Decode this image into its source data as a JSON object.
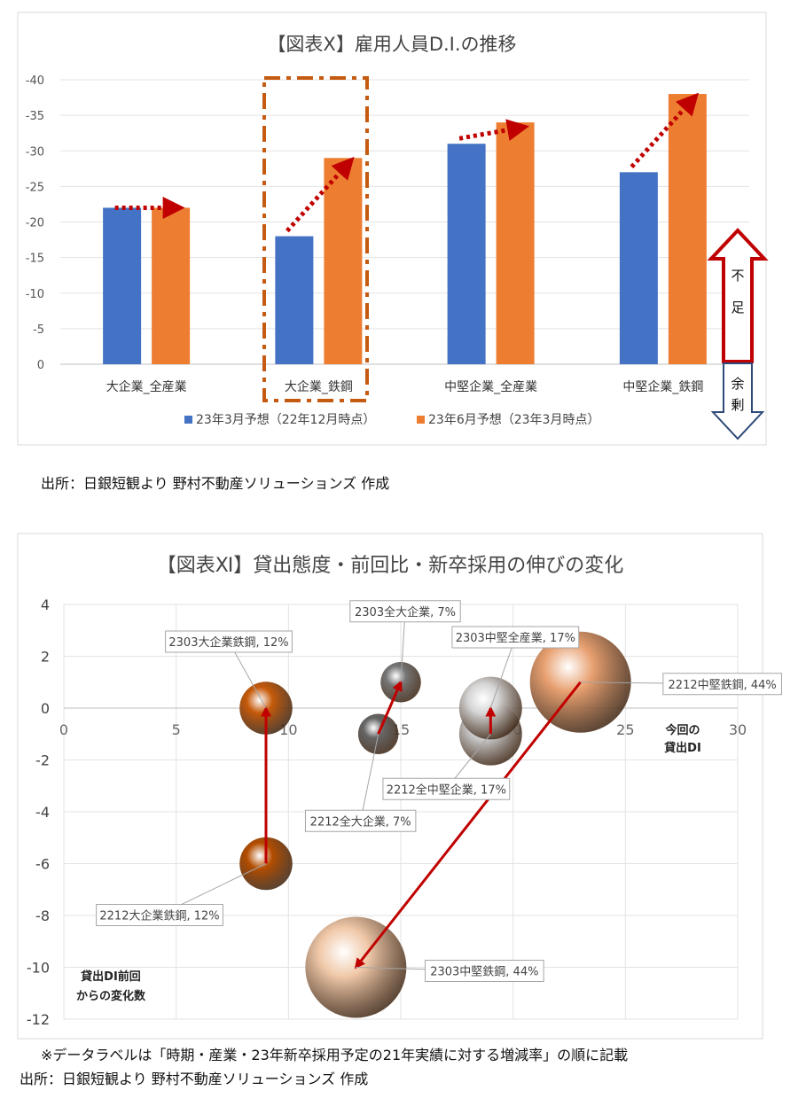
{
  "chart_data": [
    {
      "type": "bar",
      "title": "【図表Ⅹ】雇用人員D.I.の推移",
      "categories": [
        "大企業_全産業",
        "大企業_鉄鋼",
        "中堅企業_全産業",
        "中堅企業_鉄鋼"
      ],
      "series": [
        {
          "name": "23年3月予想（22年12月時点）",
          "values": [
            -22,
            -18,
            -31,
            -27
          ],
          "color": "#4472c4"
        },
        {
          "name": "23年6月予想（23年3月時点）",
          "values": [
            -22,
            -29,
            -34,
            -38
          ],
          "color": "#ed7d31"
        }
      ],
      "ylim": [
        0,
        -40
      ],
      "yticks": [
        "-40",
        "-35",
        "-30",
        "-25",
        "-20",
        "-15",
        "-10",
        "-5",
        "0"
      ],
      "axis_reversed": true,
      "legend": "bottom",
      "highlight_category": "大企業_鉄鋼",
      "side_arrows": {
        "up": "不足",
        "down": "余剰"
      }
    },
    {
      "type": "bubble",
      "title": "【図表Ⅺ】貸出態度・前回比・新卒採用の伸びの変化",
      "xlabel": "今回の貸出DI",
      "ylabel": "貸出DI前回からの変化数",
      "xlim": [
        0,
        30
      ],
      "ylim": [
        -12,
        4
      ],
      "xticks": [
        "0",
        "5",
        "10",
        "15",
        "20",
        "25",
        "30"
      ],
      "yticks": [
        "4",
        "2",
        "0",
        "-2",
        "-4",
        "-6",
        "-8",
        "-10",
        "-12"
      ],
      "points": [
        {
          "label": "2212大企業鉄鋼, 12%",
          "x": 9,
          "y": -6,
          "size": 12,
          "color": "#b34d00"
        },
        {
          "label": "2303大企業鉄鋼, 12%",
          "x": 9,
          "y": 0,
          "size": 12,
          "color": "#c65a0a"
        },
        {
          "label": "2212全大企業, 7%",
          "x": 14,
          "y": -1,
          "size": 7,
          "color": "#666666"
        },
        {
          "label": "2303全大企業, 7%",
          "x": 15,
          "y": 1,
          "size": 7,
          "color": "#777777"
        },
        {
          "label": "2212全中堅企業, 17%",
          "x": 19,
          "y": -1,
          "size": 17,
          "color": "#c8c8c8"
        },
        {
          "label": "2303中堅全産業, 17%",
          "x": 19,
          "y": 0,
          "size": 17,
          "color": "#d4d4d4"
        },
        {
          "label": "2212中堅鉄鋼, 44%",
          "x": 23,
          "y": 1,
          "size": 44,
          "color": "#e8a070"
        },
        {
          "label": "2303中堅鉄鋼, 44%",
          "x": 13,
          "y": -10,
          "size": 44,
          "color": "#f0c8a8"
        }
      ],
      "arrows": [
        {
          "from": [
            9,
            -6
          ],
          "to": [
            9,
            0
          ]
        },
        {
          "from": [
            14,
            -1
          ],
          "to": [
            15,
            1
          ]
        },
        {
          "from": [
            19,
            -1
          ],
          "to": [
            19,
            0
          ]
        },
        {
          "from": [
            23,
            1
          ],
          "to": [
            13,
            -10
          ]
        }
      ]
    }
  ],
  "source1": "出所：日銀短観より  野村不動産ソリューションズ  作成",
  "note2": "※データラベルは「時期・産業・23年新卒採用予定の21年実績に対する増減率」の順に記載",
  "source2": "出所：日銀短観より  野村不動産ソリューションズ  作成"
}
